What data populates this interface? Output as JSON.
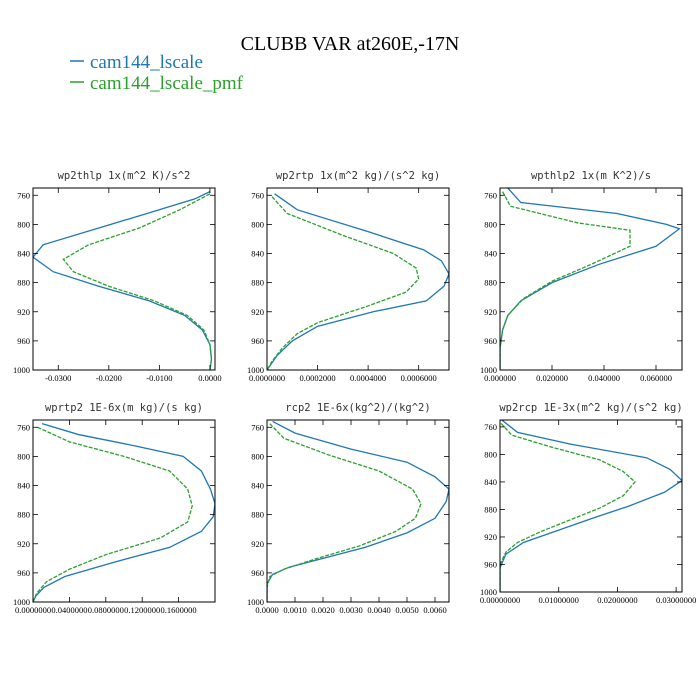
{
  "figure": {
    "title": "CLUBB VAR at260E,-17N",
    "legend": [
      {
        "label": "cam144_lscale",
        "color": "#1f77b4",
        "dash": "solid"
      },
      {
        "label": "cam144_lscale_pmf",
        "color": "#2ca02c",
        "dash": "dashed"
      }
    ]
  },
  "chart_data": [
    {
      "type": "line",
      "title": "wp2thlp  1x(m^2 K)/s^2",
      "xlim": [
        -0.035,
        0.001
      ],
      "ylim": [
        750,
        1000
      ],
      "y_inverted": true,
      "xticks": [
        -0.03,
        -0.02,
        -0.01,
        0.0
      ],
      "xtick_labels": [
        "-0.0300",
        "-0.0200",
        "-0.0100",
        "0.0000"
      ],
      "yticks": [
        760,
        800,
        840,
        880,
        920,
        960,
        1000
      ],
      "series": [
        {
          "name": "cam144_lscale",
          "points": [
            [
              0.0,
              755
            ],
            [
              -0.003,
              765
            ],
            [
              -0.011,
              782
            ],
            [
              -0.022,
              805
            ],
            [
              -0.033,
              828
            ],
            [
              -0.035,
              845
            ],
            [
              -0.031,
              865
            ],
            [
              -0.022,
              885
            ],
            [
              -0.012,
              905
            ],
            [
              -0.005,
              925
            ],
            [
              -0.0015,
              945
            ],
            [
              0.0,
              965
            ],
            [
              0.0003,
              985
            ],
            [
              0.0,
              1000
            ]
          ]
        },
        {
          "name": "cam144_lscale_pmf",
          "points": [
            [
              0.0,
              758
            ],
            [
              -0.006,
              780
            ],
            [
              -0.014,
              805
            ],
            [
              -0.024,
              828
            ],
            [
              -0.029,
              848
            ],
            [
              -0.027,
              865
            ],
            [
              -0.02,
              885
            ],
            [
              -0.011,
              905
            ],
            [
              -0.0045,
              925
            ],
            [
              -0.0012,
              945
            ],
            [
              0.0,
              965
            ],
            [
              0.0003,
              985
            ],
            [
              0.0,
              1000
            ]
          ]
        }
      ]
    },
    {
      "type": "line",
      "title": "wp2rtp  1x(m^2 kg)/(s^2 kg)",
      "xlim": [
        0.0,
        0.00072
      ],
      "ylim": [
        750,
        1000
      ],
      "y_inverted": true,
      "xticks": [
        0.0,
        0.0002,
        0.0004,
        0.0006
      ],
      "xtick_labels": [
        "0.0000000",
        "0.0002000",
        "0.0004000",
        "0.0006000"
      ],
      "yticks": [
        760,
        800,
        840,
        880,
        920,
        960,
        1000
      ],
      "series": [
        {
          "name": "cam144_lscale",
          "points": [
            [
              3e-05,
              758
            ],
            [
              0.00012,
              780
            ],
            [
              0.0004,
              810
            ],
            [
              0.00062,
              835
            ],
            [
              0.00069,
              850
            ],
            [
              0.00072,
              868
            ],
            [
              0.0007,
              885
            ],
            [
              0.00063,
              905
            ],
            [
              0.00042,
              920
            ],
            [
              0.0002,
              940
            ],
            [
              0.0001,
              960
            ],
            [
              4e-05,
              980
            ],
            [
              0.0,
              1000
            ]
          ]
        },
        {
          "name": "cam144_lscale_pmf",
          "points": [
            [
              2e-05,
              762
            ],
            [
              8e-05,
              785
            ],
            [
              0.0003,
              815
            ],
            [
              0.0005,
              840
            ],
            [
              0.00059,
              860
            ],
            [
              0.0006,
              875
            ],
            [
              0.00055,
              893
            ],
            [
              0.0004,
              912
            ],
            [
              0.0002,
              935
            ],
            [
              0.00012,
              950
            ],
            [
              6e-05,
              970
            ],
            [
              2e-05,
              988
            ],
            [
              0.0,
              1000
            ]
          ]
        }
      ]
    },
    {
      "type": "line",
      "title": "wpthlp2  1x(m K^2)/s",
      "xlim": [
        0.0,
        0.07
      ],
      "ylim": [
        750,
        1000
      ],
      "y_inverted": true,
      "xticks": [
        0.0,
        0.02,
        0.04,
        0.06
      ],
      "xtick_labels": [
        "0.000000",
        "0.020000",
        "0.040000",
        "0.060000"
      ],
      "yticks": [
        760,
        800,
        840,
        880,
        920,
        960,
        1000
      ],
      "series": [
        {
          "name": "cam144_lscale",
          "points": [
            [
              0.003,
              750
            ],
            [
              0.008,
              770
            ],
            [
              0.045,
              785
            ],
            [
              0.064,
              800
            ],
            [
              0.069,
              806
            ],
            [
              0.06,
              830
            ],
            [
              0.038,
              855
            ],
            [
              0.02,
              880
            ],
            [
              0.008,
              905
            ],
            [
              0.003,
              925
            ],
            [
              0.001,
              945
            ],
            [
              0.0,
              970
            ],
            [
              0.0,
              1000
            ]
          ]
        },
        {
          "name": "cam144_lscale_pmf",
          "points": [
            [
              0.001,
              755
            ],
            [
              0.004,
              775
            ],
            [
              0.03,
              798
            ],
            [
              0.05,
              808
            ],
            [
              0.05,
              830
            ],
            [
              0.035,
              855
            ],
            [
              0.02,
              878
            ],
            [
              0.009,
              902
            ],
            [
              0.003,
              925
            ],
            [
              0.001,
              945
            ],
            [
              0.0,
              970
            ],
            [
              0.0,
              1000
            ]
          ]
        }
      ]
    },
    {
      "type": "line",
      "title": "wprtp2  1E-6x(m kg)/(s kg)",
      "xlim": [
        0.0,
        0.2
      ],
      "ylim": [
        750,
        1000
      ],
      "y_inverted": true,
      "xticks": [
        0.0,
        0.04,
        0.08,
        0.12,
        0.16
      ],
      "xtick_labels": [
        "0.0000000",
        "0.0400000",
        "0.0800000",
        "0.1200000",
        "0.1600000"
      ],
      "yticks": [
        760,
        800,
        840,
        880,
        920,
        960,
        1000
      ],
      "series": [
        {
          "name": "cam144_lscale",
          "points": [
            [
              0.01,
              755
            ],
            [
              0.05,
              770
            ],
            [
              0.11,
              785
            ],
            [
              0.165,
              800
            ],
            [
              0.185,
              820
            ],
            [
              0.195,
              845
            ],
            [
              0.2,
              865
            ],
            [
              0.198,
              883
            ],
            [
              0.185,
              903
            ],
            [
              0.15,
              925
            ],
            [
              0.09,
              945
            ],
            [
              0.035,
              965
            ],
            [
              0.012,
              980
            ],
            [
              0.003,
              992
            ],
            [
              0.0,
              1000
            ]
          ]
        },
        {
          "name": "cam144_lscale_pmf",
          "points": [
            [
              0.005,
              760
            ],
            [
              0.04,
              780
            ],
            [
              0.1,
              800
            ],
            [
              0.15,
              820
            ],
            [
              0.17,
              845
            ],
            [
              0.175,
              868
            ],
            [
              0.17,
              890
            ],
            [
              0.14,
              912
            ],
            [
              0.08,
              935
            ],
            [
              0.04,
              955
            ],
            [
              0.015,
              972
            ],
            [
              0.004,
              988
            ],
            [
              0.0,
              1000
            ]
          ]
        }
      ]
    },
    {
      "type": "line",
      "title": "rcp2  1E-6x(kg^2)/(kg^2)",
      "xlim": [
        0.0,
        0.0065
      ],
      "ylim": [
        750,
        1000
      ],
      "y_inverted": true,
      "xticks": [
        0.0,
        0.001,
        0.002,
        0.003,
        0.004,
        0.005,
        0.006
      ],
      "xtick_labels": [
        "0.0000",
        "0.0010",
        "0.0020",
        "0.0030",
        "0.0040",
        "0.0050",
        "0.0060"
      ],
      "yticks": [
        760,
        800,
        840,
        880,
        920,
        960,
        1000
      ],
      "series": [
        {
          "name": "cam144_lscale",
          "points": [
            [
              0.0002,
              752
            ],
            [
              0.001,
              768
            ],
            [
              0.003,
              790
            ],
            [
              0.005,
              808
            ],
            [
              0.006,
              828
            ],
            [
              0.0065,
              845
            ],
            [
              0.0064,
              862
            ],
            [
              0.006,
              885
            ],
            [
              0.005,
              905
            ],
            [
              0.0035,
              925
            ],
            [
              0.002,
              940
            ],
            [
              0.0008,
              952
            ],
            [
              0.0002,
              962
            ],
            [
              0.0,
              975
            ],
            [
              0.0,
              1000
            ]
          ]
        },
        {
          "name": "cam144_lscale_pmf",
          "points": [
            [
              0.0001,
              755
            ],
            [
              0.0006,
              775
            ],
            [
              0.0022,
              798
            ],
            [
              0.004,
              820
            ],
            [
              0.0052,
              845
            ],
            [
              0.0055,
              865
            ],
            [
              0.0053,
              885
            ],
            [
              0.0046,
              903
            ],
            [
              0.0033,
              923
            ],
            [
              0.0018,
              940
            ],
            [
              0.0006,
              955
            ],
            [
              0.0001,
              965
            ],
            [
              0.0,
              980
            ],
            [
              0.0,
              1000
            ]
          ]
        }
      ]
    },
    {
      "type": "line",
      "title": "wp2rcp  1E-3x(m^2 kg)/(s^2 kg)",
      "xlim": [
        0.0,
        0.031
      ],
      "ylim": [
        750,
        1000
      ],
      "y_inverted": true,
      "xticks": [
        0.0,
        0.01,
        0.02,
        0.03
      ],
      "xtick_labels": [
        "0.00000000",
        "0.01000000",
        "0.02000000",
        "0.03000000"
      ],
      "yticks": [
        760,
        800,
        840,
        880,
        920,
        960,
        1000
      ],
      "series": [
        {
          "name": "cam144_lscale",
          "points": [
            [
              0.0003,
              750
            ],
            [
              0.003,
              768
            ],
            [
              0.012,
              785
            ],
            [
              0.025,
              805
            ],
            [
              0.029,
              822
            ],
            [
              0.031,
              838
            ],
            [
              0.028,
              855
            ],
            [
              0.022,
              875
            ],
            [
              0.016,
              892
            ],
            [
              0.01,
              910
            ],
            [
              0.004,
              928
            ],
            [
              0.001,
              945
            ],
            [
              0.0,
              965
            ],
            [
              0.0,
              1000
            ]
          ]
        },
        {
          "name": "cam144_lscale_pmf",
          "points": [
            [
              0.0002,
              755
            ],
            [
              0.002,
              772
            ],
            [
              0.009,
              790
            ],
            [
              0.017,
              808
            ],
            [
              0.021,
              825
            ],
            [
              0.023,
              840
            ],
            [
              0.021,
              860
            ],
            [
              0.017,
              878
            ],
            [
              0.012,
              895
            ],
            [
              0.007,
              912
            ],
            [
              0.003,
              928
            ],
            [
              0.001,
              942
            ],
            [
              0.0,
              960
            ],
            [
              0.0,
              1000
            ]
          ]
        }
      ]
    }
  ]
}
